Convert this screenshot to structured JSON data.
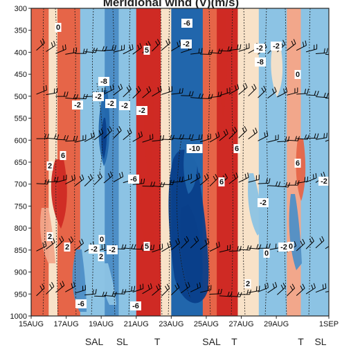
{
  "title": "Meridional wind (V)(m/s)",
  "chart_data": {
    "type": "heatmap",
    "title": "Meridional wind (V)(m/s)",
    "xlabel": "",
    "ylabel": "",
    "x_ticks": [
      "15AUG",
      "17AUG",
      "19AUG",
      "21AUG",
      "23AUG",
      "25AUG",
      "27AUG",
      "29AUG",
      "1SEP"
    ],
    "x_range_days": [
      15,
      32
    ],
    "y_ticks": [
      300,
      350,
      400,
      450,
      500,
      550,
      600,
      650,
      700,
      750,
      800,
      850,
      900,
      950,
      1000
    ],
    "y_range_hpa": [
      300,
      1000
    ],
    "y_inverted": true,
    "contour_levels": [
      -10,
      -8,
      -6,
      -4,
      -2,
      0,
      2,
      4,
      6,
      8
    ],
    "colors": {
      "strong_south": "#0a3f8a",
      "mod_south": "#2166ac",
      "south": "#4e8fc7",
      "weak_south": "#8cc3e4",
      "neutral": "#f8e2c8",
      "weak_north": "#f2a78b",
      "north": "#e66548",
      "strong_north": "#cf2a24"
    },
    "column_bands": [
      {
        "start": "15AUG",
        "end": "16AUG",
        "value": 4
      },
      {
        "start": "16AUG",
        "end": "16.5AUG",
        "value": 0
      },
      {
        "start": "16.5AUG",
        "end": "17.8AUG",
        "value": 4
      },
      {
        "start": "17.8AUG",
        "end": "19.2AUG",
        "value": -2
      },
      {
        "start": "19.2AUG",
        "end": "20AUG",
        "value": -4
      },
      {
        "start": "20AUG",
        "end": "21AUG",
        "value": -2
      },
      {
        "start": "21AUG",
        "end": "22.4AUG",
        "value": 6
      },
      {
        "start": "22.4AUG",
        "end": "23AUG",
        "value": 0
      },
      {
        "start": "23AUG",
        "end": "24.8AUG",
        "value": -6
      },
      {
        "start": "24.8AUG",
        "end": "25.6AUG",
        "value": 4
      },
      {
        "start": "25.6AUG",
        "end": "26.8AUG",
        "value": 6
      },
      {
        "start": "26.8AUG",
        "end": "28AUG",
        "value": 0
      },
      {
        "start": "28AUG",
        "end": "29.6AUG",
        "value": -2
      },
      {
        "start": "29.6AUG",
        "end": "30.4AUG",
        "value": 2
      },
      {
        "start": "30.4AUG",
        "end": "1SEP",
        "value": -2
      }
    ],
    "contour_labels": [
      "0",
      "-2",
      "-2",
      "5",
      "-6",
      "-2",
      "-8",
      "-2",
      "0",
      "-2",
      "-2",
      "-2",
      "-2",
      "-8",
      "6",
      "-10",
      "6",
      "6",
      "6",
      "2",
      "-6",
      "-2",
      "-2",
      "2",
      "2",
      "0",
      "-2",
      "-2",
      "5",
      "0",
      "-2",
      "0",
      "2",
      "-6",
      "-6",
      "2"
    ],
    "event_labels": [
      "SAL",
      "SL",
      "T",
      "SAL",
      "T",
      "T",
      "SL"
    ]
  }
}
